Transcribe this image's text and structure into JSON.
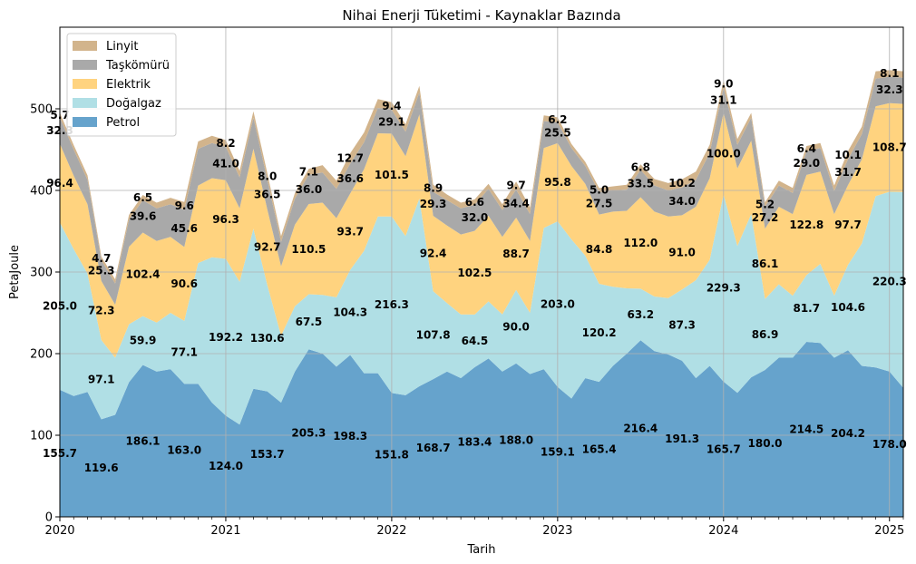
{
  "chart_data": {
    "type": "area",
    "stacked": true,
    "title": "Nihai Enerji Tüketimi - Kaynaklar Bazında",
    "xlabel": "Tarih",
    "ylabel": "PetaJoule",
    "xlim": [
      "2020-01",
      "2025-02"
    ],
    "ylim": [
      0,
      600
    ],
    "yticks": [
      0,
      100,
      200,
      300,
      400,
      500
    ],
    "xticks": [
      "2020",
      "2021",
      "2022",
      "2023",
      "2024",
      "2025"
    ],
    "grid": true,
    "legend_position": "upper-left",
    "x": [
      "2020-01",
      "2020-02",
      "2020-03",
      "2020-04",
      "2020-05",
      "2020-06",
      "2020-07",
      "2020-08",
      "2020-09",
      "2020-10",
      "2020-11",
      "2020-12",
      "2021-01",
      "2021-02",
      "2021-03",
      "2021-04",
      "2021-05",
      "2021-06",
      "2021-07",
      "2021-08",
      "2021-09",
      "2021-10",
      "2021-11",
      "2021-12",
      "2022-01",
      "2022-02",
      "2022-03",
      "2022-04",
      "2022-05",
      "2022-06",
      "2022-07",
      "2022-08",
      "2022-09",
      "2022-10",
      "2022-11",
      "2022-12",
      "2023-01",
      "2023-02",
      "2023-03",
      "2023-04",
      "2023-05",
      "2023-06",
      "2023-07",
      "2023-08",
      "2023-09",
      "2023-10",
      "2023-11",
      "2023-12",
      "2024-01",
      "2024-02",
      "2024-03",
      "2024-04",
      "2024-05",
      "2024-06",
      "2024-07",
      "2024-08",
      "2024-09",
      "2024-10",
      "2024-11",
      "2024-12",
      "2025-01",
      "2025-02"
    ],
    "series": [
      {
        "name": "Petrol",
        "color": "#66a3cc",
        "values": [
          155.7,
          148,
          153,
          119.6,
          125,
          165,
          186.1,
          178,
          181,
          163,
          163,
          140,
          124,
          113,
          157,
          153.7,
          140,
          178,
          205.3,
          200,
          184,
          198.3,
          176,
          176,
          151.8,
          149,
          160,
          168.7,
          178,
          170,
          183.4,
          194,
          178,
          188,
          175,
          181,
          159.1,
          145,
          170,
          165.4,
          185,
          200,
          216.4,
          203,
          199,
          191.3,
          170,
          185,
          165.7,
          152,
          171,
          180,
          195,
          195,
          214.5,
          213,
          195,
          204.2,
          185,
          183,
          178,
          158
        ]
      },
      {
        "name": "Doğalgaz",
        "color": "#b0dfe5",
        "values": [
          205.0,
          180,
          145,
          97.1,
          70,
          71,
          59.9,
          60,
          69,
          77.1,
          148,
          178,
          192.2,
          175,
          196,
          130.6,
          82,
          80,
          67.5,
          72,
          85,
          104.3,
          150,
          192,
          216.3,
          195,
          230,
          107.8,
          84,
          78,
          64.5,
          70,
          70,
          90.0,
          75,
          173,
          203.0,
          195,
          150,
          120.2,
          97,
          80,
          63.2,
          67,
          69,
          87.3,
          120,
          130,
          229.3,
          180,
          200,
          86.9,
          90,
          76,
          81.7,
          97,
          76,
          104.6,
          150,
          210,
          220.3,
          240
        ]
      },
      {
        "name": "Elektrik",
        "color": "#ffd37f",
        "values": [
          96.4,
          90,
          85,
          72.3,
          65,
          95,
          102.4,
          100,
          93,
          90.6,
          95,
          97,
          96.3,
          90,
          98,
          92.7,
          85,
          100,
          110.5,
          113,
          97,
          93.7,
          100,
          102,
          101.5,
          98,
          103,
          92.4,
          95,
          98,
          102.5,
          105,
          95,
          88.7,
          88,
          98,
          95.8,
          90,
          88,
          84.8,
          92,
          95,
          112.0,
          104,
          100,
          91.0,
          90,
          100,
          100.0,
          95,
          90,
          86.1,
          95,
          100,
          122.8,
          113,
          100,
          97.7,
          103,
          110,
          108.7,
          108
        ]
      },
      {
        "name": "Taşkömürü",
        "color": "#a9a9a9",
        "values": [
          32.3,
          32,
          30,
          25.3,
          26,
          33,
          39.6,
          40,
          40,
          45.6,
          45,
          43,
          41.0,
          38,
          38,
          36.5,
          30,
          32,
          36.0,
          37,
          36,
          36.6,
          33,
          31,
          29.1,
          30,
          27,
          29.3,
          31,
          32,
          32.0,
          33,
          33,
          34.4,
          33,
          33,
          25.5,
          22,
          22,
          27.5,
          26,
          26,
          33.5,
          32,
          32,
          34.0,
          33,
          31,
          31.1,
          29,
          28,
          27.2,
          26,
          26,
          29.0,
          29,
          28,
          31.7,
          31,
          34,
          32.3,
          32
        ]
      },
      {
        "name": "Linyit",
        "color": "#d2b48c",
        "values": [
          5.7,
          5.5,
          5.5,
          4.7,
          5,
          6,
          6.5,
          7,
          8,
          9.6,
          9,
          9,
          8.2,
          8,
          8,
          8.0,
          7,
          7,
          7.1,
          9,
          10,
          12.7,
          12,
          11,
          9.4,
          9,
          8,
          8.9,
          7,
          7,
          6.6,
          6,
          7,
          9.7,
          8,
          7,
          6.2,
          5,
          5,
          5.0,
          5,
          6,
          6.8,
          8,
          9,
          10.2,
          10,
          10,
          9.0,
          7,
          6,
          5.2,
          6,
          6,
          6.4,
          6,
          7,
          10.1,
          9,
          9,
          8.1,
          8
        ]
      }
    ],
    "data_labels": [
      {
        "series": "Petrol",
        "x": "2020-01",
        "value": "155.7"
      },
      {
        "series": "Petrol",
        "x": "2020-04",
        "value": "119.6"
      },
      {
        "series": "Petrol",
        "x": "2020-07",
        "value": "186.1"
      },
      {
        "series": "Petrol",
        "x": "2020-10",
        "value": "163.0"
      },
      {
        "series": "Petrol",
        "x": "2021-01",
        "value": "124.0"
      },
      {
        "series": "Petrol",
        "x": "2021-04",
        "value": "153.7"
      },
      {
        "series": "Petrol",
        "x": "2021-07",
        "value": "205.3"
      },
      {
        "series": "Petrol",
        "x": "2021-10",
        "value": "198.3"
      },
      {
        "series": "Petrol",
        "x": "2022-01",
        "value": "151.8"
      },
      {
        "series": "Petrol",
        "x": "2022-04",
        "value": "168.7"
      },
      {
        "series": "Petrol",
        "x": "2022-07",
        "value": "183.4"
      },
      {
        "series": "Petrol",
        "x": "2022-10",
        "value": "188.0"
      },
      {
        "series": "Petrol",
        "x": "2023-01",
        "value": "159.1"
      },
      {
        "series": "Petrol",
        "x": "2023-04",
        "value": "165.4"
      },
      {
        "series": "Petrol",
        "x": "2023-07",
        "value": "216.4"
      },
      {
        "series": "Petrol",
        "x": "2023-10",
        "value": "191.3"
      },
      {
        "series": "Petrol",
        "x": "2024-01",
        "value": "165.7"
      },
      {
        "series": "Petrol",
        "x": "2024-04",
        "value": "180.0"
      },
      {
        "series": "Petrol",
        "x": "2024-07",
        "value": "214.5"
      },
      {
        "series": "Petrol",
        "x": "2024-10",
        "value": "204.2"
      },
      {
        "series": "Petrol",
        "x": "2025-01",
        "value": "178.0"
      },
      {
        "series": "Doğalgaz",
        "x": "2020-01",
        "value": "205.0"
      },
      {
        "series": "Doğalgaz",
        "x": "2020-04",
        "value": "97.1"
      },
      {
        "series": "Doğalgaz",
        "x": "2020-07",
        "value": "59.9"
      },
      {
        "series": "Doğalgaz",
        "x": "2020-10",
        "value": "77.1"
      },
      {
        "series": "Doğalgaz",
        "x": "2021-01",
        "value": "192.2"
      },
      {
        "series": "Doğalgaz",
        "x": "2021-04",
        "value": "130.6"
      },
      {
        "series": "Doğalgaz",
        "x": "2021-07",
        "value": "67.5"
      },
      {
        "series": "Doğalgaz",
        "x": "2021-10",
        "value": "104.3"
      },
      {
        "series": "Doğalgaz",
        "x": "2022-01",
        "value": "216.3"
      },
      {
        "series": "Doğalgaz",
        "x": "2022-04",
        "value": "107.8"
      },
      {
        "series": "Doğalgaz",
        "x": "2022-07",
        "value": "64.5"
      },
      {
        "series": "Doğalgaz",
        "x": "2022-10",
        "value": "90.0"
      },
      {
        "series": "Doğalgaz",
        "x": "2023-01",
        "value": "203.0"
      },
      {
        "series": "Doğalgaz",
        "x": "2023-04",
        "value": "120.2"
      },
      {
        "series": "Doğalgaz",
        "x": "2023-07",
        "value": "63.2"
      },
      {
        "series": "Doğalgaz",
        "x": "2023-10",
        "value": "87.3"
      },
      {
        "series": "Doğalgaz",
        "x": "2024-01",
        "value": "229.3"
      },
      {
        "series": "Doğalgaz",
        "x": "2024-04",
        "value": "86.9"
      },
      {
        "series": "Doğalgaz",
        "x": "2024-07",
        "value": "81.7"
      },
      {
        "series": "Doğalgaz",
        "x": "2024-10",
        "value": "104.6"
      },
      {
        "series": "Doğalgaz",
        "x": "2025-01",
        "value": "220.3"
      },
      {
        "series": "Elektrik",
        "x": "2020-01",
        "value": "96.4"
      },
      {
        "series": "Elektrik",
        "x": "2020-04",
        "value": "72.3"
      },
      {
        "series": "Elektrik",
        "x": "2020-07",
        "value": "102.4"
      },
      {
        "series": "Elektrik",
        "x": "2020-10",
        "value": "90.6"
      },
      {
        "series": "Elektrik",
        "x": "2021-01",
        "value": "96.3"
      },
      {
        "series": "Elektrik",
        "x": "2021-04",
        "value": "92.7"
      },
      {
        "series": "Elektrik",
        "x": "2021-07",
        "value": "110.5"
      },
      {
        "series": "Elektrik",
        "x": "2021-10",
        "value": "93.7"
      },
      {
        "series": "Elektrik",
        "x": "2022-01",
        "value": "101.5"
      },
      {
        "series": "Elektrik",
        "x": "2022-04",
        "value": "92.4"
      },
      {
        "series": "Elektrik",
        "x": "2022-07",
        "value": "102.5"
      },
      {
        "series": "Elektrik",
        "x": "2022-10",
        "value": "88.7"
      },
      {
        "series": "Elektrik",
        "x": "2023-01",
        "value": "95.8"
      },
      {
        "series": "Elektrik",
        "x": "2023-04",
        "value": "84.8"
      },
      {
        "series": "Elektrik",
        "x": "2023-07",
        "value": "112.0"
      },
      {
        "series": "Elektrik",
        "x": "2023-10",
        "value": "91.0"
      },
      {
        "series": "Elektrik",
        "x": "2024-01",
        "value": "100.0"
      },
      {
        "series": "Elektrik",
        "x": "2024-04",
        "value": "86.1"
      },
      {
        "series": "Elektrik",
        "x": "2024-07",
        "value": "122.8"
      },
      {
        "series": "Elektrik",
        "x": "2024-10",
        "value": "97.7"
      },
      {
        "series": "Elektrik",
        "x": "2025-01",
        "value": "108.7"
      },
      {
        "series": "Taşkömürü",
        "x": "2020-01",
        "value": "32.3"
      },
      {
        "series": "Taşkömürü",
        "x": "2020-04",
        "value": "25.3"
      },
      {
        "series": "Taşkömürü",
        "x": "2020-07",
        "value": "39.6"
      },
      {
        "series": "Taşkömürü",
        "x": "2020-10",
        "value": "45.6"
      },
      {
        "series": "Taşkömürü",
        "x": "2021-01",
        "value": "41.0"
      },
      {
        "series": "Taşkömürü",
        "x": "2021-04",
        "value": "36.5"
      },
      {
        "series": "Taşkömürü",
        "x": "2021-07",
        "value": "36.0"
      },
      {
        "series": "Taşkömürü",
        "x": "2021-10",
        "value": "36.6"
      },
      {
        "series": "Taşkömürü",
        "x": "2022-01",
        "value": "29.1"
      },
      {
        "series": "Taşkömürü",
        "x": "2022-04",
        "value": "29.3"
      },
      {
        "series": "Taşkömürü",
        "x": "2022-07",
        "value": "32.0"
      },
      {
        "series": "Taşkömürü",
        "x": "2022-10",
        "value": "34.4"
      },
      {
        "series": "Taşkömürü",
        "x": "2023-01",
        "value": "25.5"
      },
      {
        "series": "Taşkömürü",
        "x": "2023-04",
        "value": "27.5"
      },
      {
        "series": "Taşkömürü",
        "x": "2023-07",
        "value": "33.5"
      },
      {
        "series": "Taşkömürü",
        "x": "2023-10",
        "value": "34.0"
      },
      {
        "series": "Taşkömürü",
        "x": "2024-01",
        "value": "31.1"
      },
      {
        "series": "Taşkömürü",
        "x": "2024-04",
        "value": "27.2"
      },
      {
        "series": "Taşkömürü",
        "x": "2024-07",
        "value": "29.0"
      },
      {
        "series": "Taşkömürü",
        "x": "2024-10",
        "value": "31.7"
      },
      {
        "series": "Taşkömürü",
        "x": "2025-01",
        "value": "32.3"
      },
      {
        "series": "Linyit",
        "x": "2020-01",
        "value": "5.7"
      },
      {
        "series": "Linyit",
        "x": "2020-04",
        "value": "4.7"
      },
      {
        "series": "Linyit",
        "x": "2020-07",
        "value": "6.5"
      },
      {
        "series": "Linyit",
        "x": "2020-10",
        "value": "9.6"
      },
      {
        "series": "Linyit",
        "x": "2021-01",
        "value": "8.2"
      },
      {
        "series": "Linyit",
        "x": "2021-04",
        "value": "8.0"
      },
      {
        "series": "Linyit",
        "x": "2021-07",
        "value": "7.1"
      },
      {
        "series": "Linyit",
        "x": "2021-10",
        "value": "12.7"
      },
      {
        "series": "Linyit",
        "x": "2022-01",
        "value": "9.4"
      },
      {
        "series": "Linyit",
        "x": "2022-04",
        "value": "8.9"
      },
      {
        "series": "Linyit",
        "x": "2022-07",
        "value": "6.6"
      },
      {
        "series": "Linyit",
        "x": "2022-10",
        "value": "9.7"
      },
      {
        "series": "Linyit",
        "x": "2023-01",
        "value": "6.2"
      },
      {
        "series": "Linyit",
        "x": "2023-04",
        "value": "5.0"
      },
      {
        "series": "Linyit",
        "x": "2023-07",
        "value": "6.8"
      },
      {
        "series": "Linyit",
        "x": "2023-10",
        "value": "10.2"
      },
      {
        "series": "Linyit",
        "x": "2024-01",
        "value": "9.0"
      },
      {
        "series": "Linyit",
        "x": "2024-04",
        "value": "5.2"
      },
      {
        "series": "Linyit",
        "x": "2024-07",
        "value": "6.4"
      },
      {
        "series": "Linyit",
        "x": "2024-10",
        "value": "10.1"
      },
      {
        "series": "Linyit",
        "x": "2025-01",
        "value": "8.1"
      }
    ],
    "legend": [
      "Linyit",
      "Taşkömürü",
      "Elektrik",
      "Doğalgaz",
      "Petrol"
    ]
  }
}
